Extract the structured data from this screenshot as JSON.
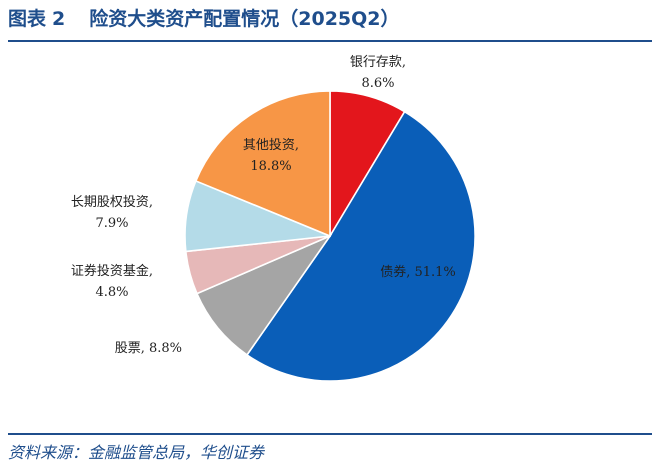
{
  "header": {
    "figure_label": "图表",
    "figure_number": "2",
    "title": "险资大类资产配置情况（2025Q2）"
  },
  "footer": {
    "source": "资料来源：金融监管总局，华创证券"
  },
  "chart_data": {
    "type": "pie",
    "start_angle_deg": 0,
    "direction": "clockwise",
    "slices": [
      {
        "name": "银行存款",
        "label_lines": [
          "银行存款,",
          "8.6%"
        ],
        "value": 8.6,
        "color": "#e3161c"
      },
      {
        "name": "债券",
        "label_lines": [
          "债券, 51.1%"
        ],
        "value": 51.1,
        "color": "#0a5eb8"
      },
      {
        "name": "股票",
        "label_lines": [
          "股票, 8.8%"
        ],
        "value": 8.8,
        "color": "#a5a5a5"
      },
      {
        "name": "证券投资基金",
        "label_lines": [
          "证券投资基金,",
          "4.8%"
        ],
        "value": 4.8,
        "color": "#e6b8b8"
      },
      {
        "name": "长期股权投资",
        "label_lines": [
          "长期股权投资,",
          "7.9%"
        ],
        "value": 7.9,
        "color": "#b4dbe8"
      },
      {
        "name": "其他投资",
        "label_lines": [
          "其他投资,",
          "18.8%"
        ],
        "value": 18.8,
        "color": "#f79646"
      }
    ]
  }
}
